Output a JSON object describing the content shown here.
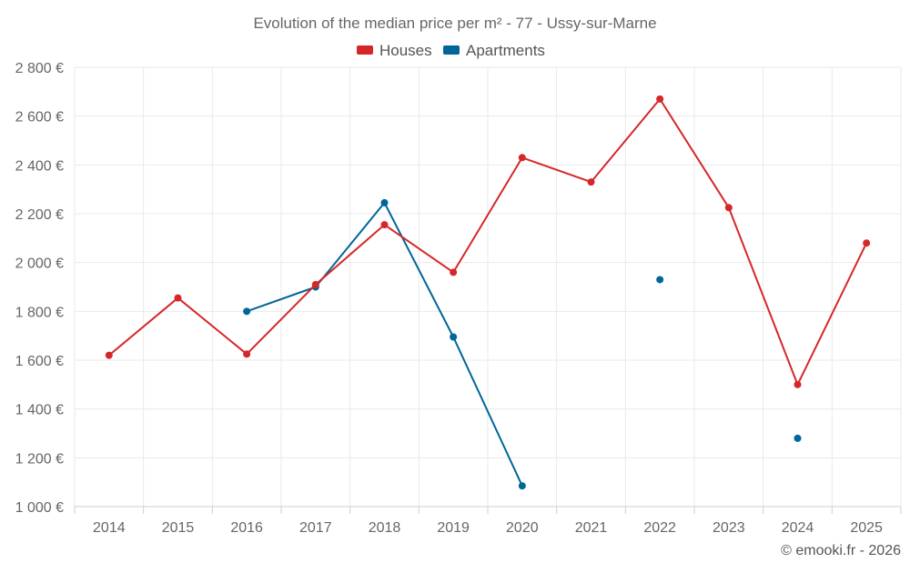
{
  "chart_data": {
    "type": "line",
    "title": "Evolution of the median price per m² - 77 - Ussy-sur-Marne",
    "categories": [
      "2014",
      "2015",
      "2016",
      "2017",
      "2018",
      "2019",
      "2020",
      "2021",
      "2022",
      "2023",
      "2024",
      "2025"
    ],
    "ylim": [
      1000,
      2800
    ],
    "yticks": [
      1000,
      1200,
      1400,
      1600,
      1800,
      2000,
      2200,
      2400,
      2600,
      2800
    ],
    "ytick_labels": [
      "1 000 €",
      "1 200 €",
      "1 400 €",
      "1 600 €",
      "1 800 €",
      "2 000 €",
      "2 200 €",
      "2 400 €",
      "2 600 €",
      "2 800 €"
    ],
    "grid": true,
    "legend_position": "top-center",
    "series": [
      {
        "name": "Houses",
        "color": "#d62728",
        "values": [
          1620,
          1855,
          1625,
          1910,
          2155,
          1960,
          2430,
          2330,
          2670,
          2225,
          1500,
          2080
        ]
      },
      {
        "name": "Apartments",
        "color": "#006699",
        "values": [
          null,
          null,
          1800,
          1900,
          2245,
          1695,
          1085,
          null,
          1930,
          null,
          1280,
          null
        ]
      }
    ],
    "credit": "© emooki.fr - 2026"
  }
}
